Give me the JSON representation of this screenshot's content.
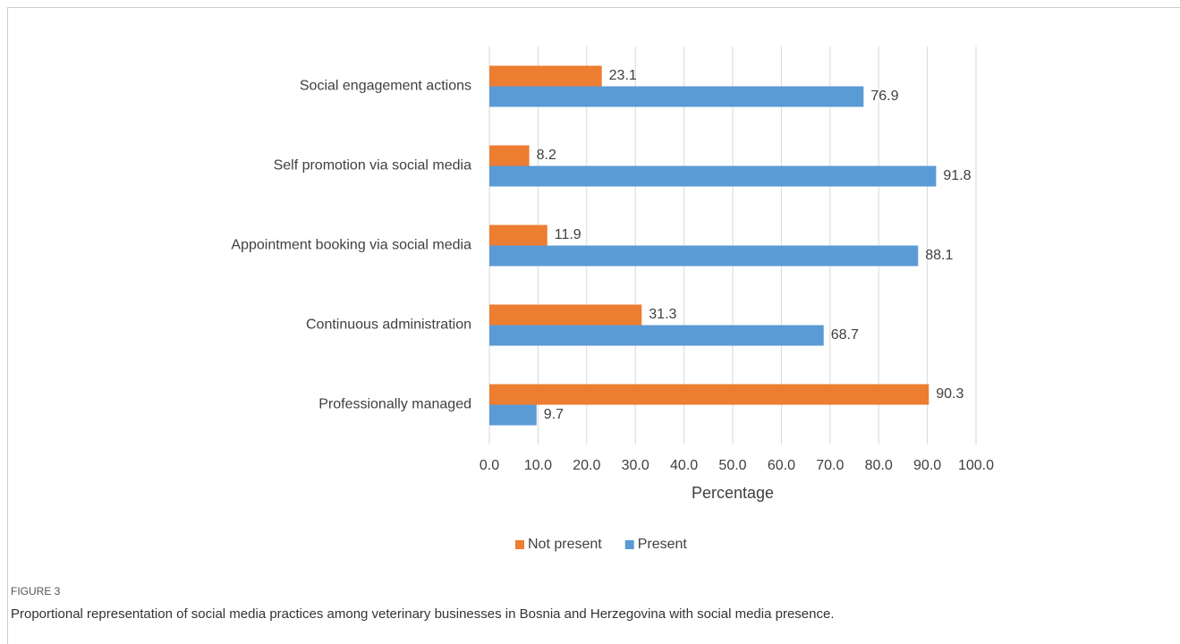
{
  "chart_data": {
    "type": "bar",
    "orientation": "horizontal",
    "x_label": "Percentage",
    "categories": [
      "Social engagement actions",
      "Self promotion via social media",
      "Appointment booking via social media",
      "Continuous administration",
      "Professionally managed"
    ],
    "series": [
      {
        "name": "Not present",
        "color": "#ed7d31",
        "values": [
          23.1,
          8.2,
          11.9,
          31.3,
          90.3
        ]
      },
      {
        "name": "Present",
        "color": "#5b9bd5",
        "values": [
          76.9,
          91.8,
          88.1,
          68.7,
          9.7
        ]
      }
    ],
    "xlim": [
      0,
      100
    ],
    "xticks": [
      {
        "value": 0,
        "label": "0.0"
      },
      {
        "value": 10,
        "label": "10.0"
      },
      {
        "value": 20,
        "label": "20.0"
      },
      {
        "value": 30,
        "label": "30.0"
      },
      {
        "value": 40,
        "label": "40.0"
      },
      {
        "value": 50,
        "label": "50.0"
      },
      {
        "value": 60,
        "label": "60.0"
      },
      {
        "value": 70,
        "label": "70.0"
      },
      {
        "value": 80,
        "label": "80.0"
      },
      {
        "value": 90,
        "label": "90.0"
      },
      {
        "value": 100,
        "label": "100.0"
      }
    ],
    "grid": true,
    "legend": "bottom"
  },
  "figure": {
    "label": "FIGURE 3",
    "caption": "Proportional representation of social media practices among veterinary businesses in Bosnia and Herzegovina with social media presence."
  }
}
